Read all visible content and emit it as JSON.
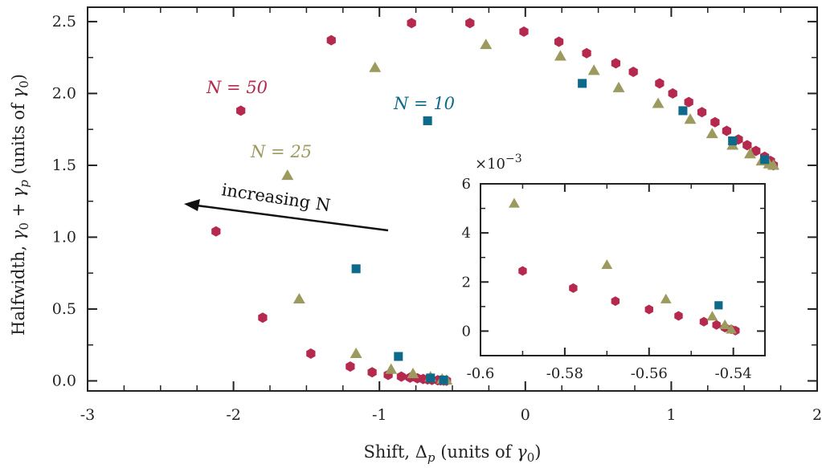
{
  "colors": {
    "N50": "#b5294e",
    "N25": "#9c9a5e",
    "N10": "#0e6a8a",
    "axis": "#222222"
  },
  "chart_data": [
    {
      "type": "scatter",
      "title": "",
      "xlabel": "Shift,  Δp  (units of γ0)",
      "ylabel": "Halfwidth,  γ0 + γp  (units of γ0)",
      "xlim": [
        -3,
        2
      ],
      "ylim": [
        -0.07,
        2.6
      ],
      "x_ticks": [
        "-3",
        "-2",
        "-1",
        "0",
        "1",
        "2"
      ],
      "y_ticks": [
        "0.0",
        "0.5",
        "1.0",
        "1.5",
        "2.0",
        "2.5"
      ],
      "annotations": [
        "N = 50",
        "N = 10",
        "N = 25",
        "increasing N"
      ],
      "series": [
        {
          "name": "N = 50",
          "marker": "hexagon",
          "x": [
            -2.12,
            -1.95,
            -1.8,
            -1.47,
            -1.33,
            -1.2,
            -1.05,
            -0.94,
            -0.85,
            -0.79,
            -0.78,
            -0.74,
            -0.7,
            -0.67,
            -0.64,
            -0.6,
            -0.58,
            -0.56,
            -0.54,
            -0.38,
            -0.01,
            0.23,
            0.42,
            0.62,
            0.74,
            0.92,
            1.01,
            1.12,
            1.21,
            1.3,
            1.38,
            1.46,
            1.52,
            1.58,
            1.64,
            1.68,
            1.7
          ],
          "y": [
            1.04,
            1.88,
            0.44,
            0.19,
            2.37,
            0.1,
            0.06,
            0.042,
            0.03,
            0.023,
            2.49,
            0.018,
            0.013,
            0.01,
            0.007,
            0.005,
            0.003,
            0.002,
            0.001,
            2.49,
            2.43,
            2.36,
            2.28,
            2.21,
            2.15,
            2.07,
            2.0,
            1.94,
            1.87,
            1.8,
            1.74,
            1.68,
            1.64,
            1.6,
            1.56,
            1.53,
            1.5
          ]
        },
        {
          "name": "N = 25",
          "marker": "triangle",
          "x": [
            -1.63,
            -1.55,
            -1.16,
            -1.03,
            -0.92,
            -0.77,
            -0.65,
            -0.57,
            -0.54,
            -0.27,
            0.24,
            0.47,
            0.64,
            0.91,
            1.13,
            1.28,
            1.42,
            1.54,
            1.62,
            1.67,
            1.7
          ],
          "y": [
            1.43,
            0.57,
            0.19,
            2.18,
            0.08,
            0.05,
            0.027,
            0.012,
            0.005,
            2.34,
            2.26,
            2.16,
            2.04,
            1.93,
            1.82,
            1.72,
            1.64,
            1.58,
            1.53,
            1.51,
            1.5
          ]
        },
        {
          "name": "N = 10",
          "marker": "square",
          "x": [
            -1.16,
            -0.87,
            -0.67,
            -0.65,
            -0.56,
            0.39,
            1.08,
            1.42,
            1.64
          ],
          "y": [
            0.78,
            0.17,
            1.81,
            0.02,
            0.006,
            2.07,
            1.88,
            1.67,
            1.54
          ]
        }
      ]
    },
    {
      "type": "scatter",
      "title": "inset",
      "axis_multiplier": "×10^-3",
      "xlim": [
        -0.6,
        -0.5325
      ],
      "ylim": [
        -1.0,
        6.0
      ],
      "x_ticks": [
        "-0.6",
        "-0.58",
        "-0.56",
        "-0.54"
      ],
      "y_ticks": [
        "0",
        "2",
        "4",
        "6"
      ],
      "series": [
        {
          "name": "N = 50",
          "marker": "hexagon",
          "x": [
            -0.59,
            -0.578,
            -0.568,
            -0.56,
            -0.553,
            -0.547,
            -0.544,
            -0.542,
            -0.5405,
            -0.5395
          ],
          "y": [
            2.45,
            1.75,
            1.22,
            0.88,
            0.62,
            0.38,
            0.25,
            0.14,
            0.07,
            0.02
          ]
        },
        {
          "name": "N = 25",
          "marker": "triangle",
          "x": [
            -0.592,
            -0.57,
            -0.556,
            -0.545,
            -0.542,
            -0.5405
          ],
          "y": [
            5.2,
            2.7,
            1.3,
            0.6,
            0.25,
            0.07
          ]
        },
        {
          "name": "N = 10",
          "marker": "square",
          "x": [
            -0.5435
          ],
          "y": [
            1.05
          ]
        }
      ]
    }
  ]
}
